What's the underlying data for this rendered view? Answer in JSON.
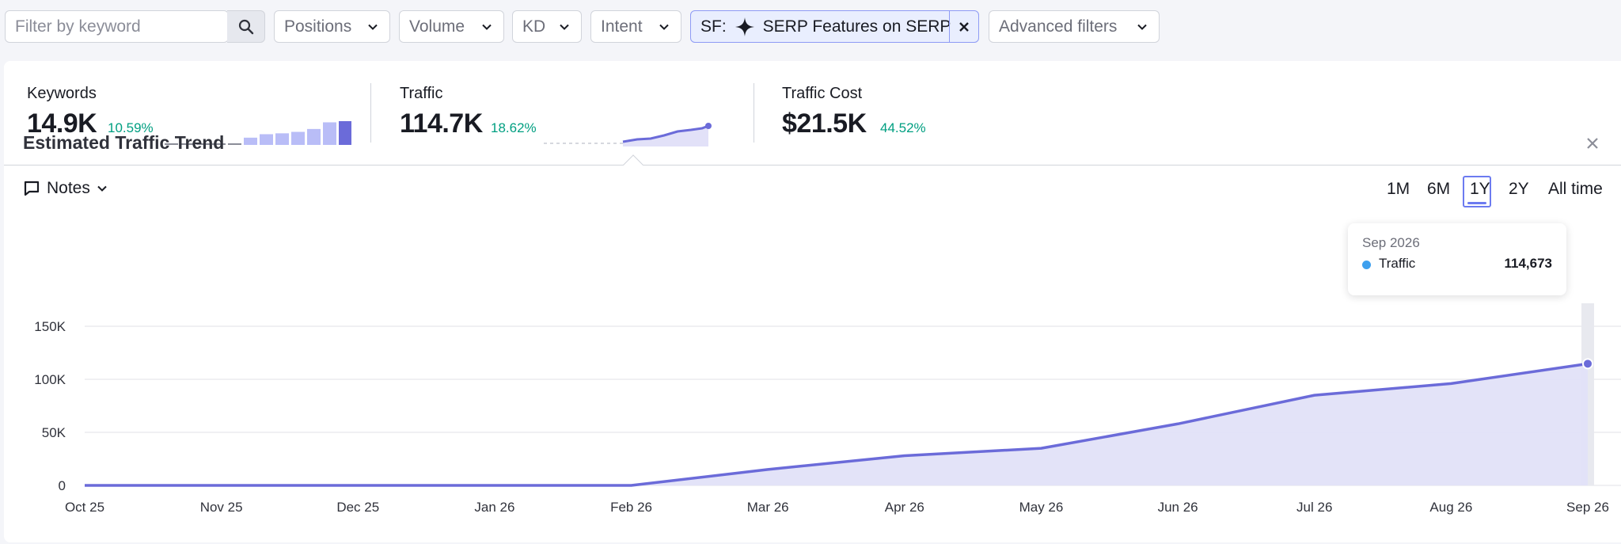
{
  "filters": {
    "search_placeholder": "Filter by keyword",
    "positions": "Positions",
    "volume": "Volume",
    "kd": "KD",
    "intent": "Intent",
    "sf_prefix": "SF:",
    "sf_value": "SERP Features on SERP",
    "advanced": "Advanced filters"
  },
  "metrics": {
    "keywords": {
      "label": "Keywords",
      "value": "14.9K",
      "change": "10.59%",
      "spark_values": [
        0,
        0,
        0,
        0,
        0,
        0.25,
        0.37,
        0.4,
        0.45,
        0.55,
        0.78,
        0.82
      ]
    },
    "traffic": {
      "label": "Traffic",
      "value": "114.7K",
      "change": "18.62%"
    },
    "traffic_cost": {
      "label": "Traffic Cost",
      "value": "$21.5K",
      "change": "44.52%"
    }
  },
  "trend": {
    "title": "Estimated Traffic Trend",
    "notes_label": "Notes",
    "ranges": [
      "1M",
      "6M",
      "1Y",
      "2Y",
      "All time"
    ],
    "active_range": "1Y"
  },
  "tooltip": {
    "date": "Sep 2026",
    "series": "Traffic",
    "value": "114,673"
  },
  "colors": {
    "line": "#6b6bd9",
    "fill": "#e2e1f8",
    "positive": "#009f81",
    "accent": "#6c7bf0"
  },
  "chart_data": {
    "type": "area",
    "x": [
      "Oct 25",
      "Nov 25",
      "Dec 25",
      "Jan 26",
      "Feb 26",
      "Mar 26",
      "Apr 26",
      "May 26",
      "Jun 26",
      "Jul 26",
      "Aug 26",
      "Sep 26"
    ],
    "series": [
      {
        "name": "Traffic",
        "values": [
          0,
          0,
          0,
          0,
          0,
          15000,
          28000,
          35000,
          58000,
          85000,
          96000,
          114673
        ]
      }
    ],
    "yticks": [
      "0",
      "50K",
      "100K",
      "150K"
    ],
    "ytick_values": [
      0,
      50000,
      100000,
      150000
    ],
    "ylim": [
      0,
      150000
    ],
    "grid": true,
    "legend": "none"
  }
}
